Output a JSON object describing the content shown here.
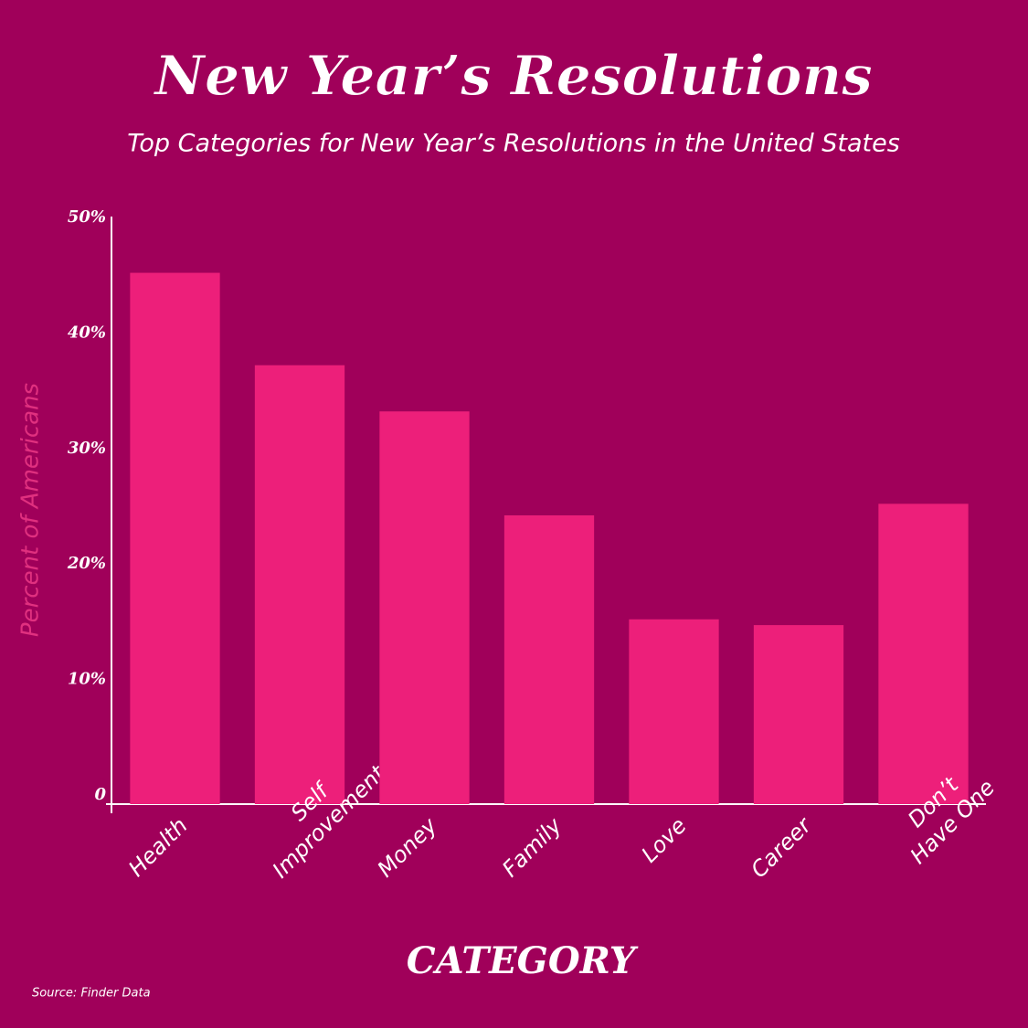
{
  "chart_data": {
    "type": "bar",
    "title": "New Year’s Resolutions",
    "subtitle": "Top Categories for New Year’s Resolutions in the United States",
    "x_label": "CATEGORY",
    "y_label": "Percent of Americans",
    "source": "Source: Finder Data",
    "categories": [
      "Health",
      "Self\nImprovement",
      "Money",
      "Family",
      "Love",
      "Career",
      "Don’t\nHave One"
    ],
    "values": [
      46,
      38,
      34,
      25,
      16,
      15.5,
      26
    ],
    "color": "#ed1f7a",
    "ylim": [
      0,
      50
    ],
    "yticks": [
      0,
      {
        "value": 10,
        "label": "10%"
      },
      {
        "value": 20,
        "label": "20%"
      },
      {
        "value": 30,
        "label": "30%"
      },
      {
        "value": 40,
        "label": "40%"
      },
      {
        "value": 50,
        "label": "50%"
      }
    ],
    "grid": false
  }
}
